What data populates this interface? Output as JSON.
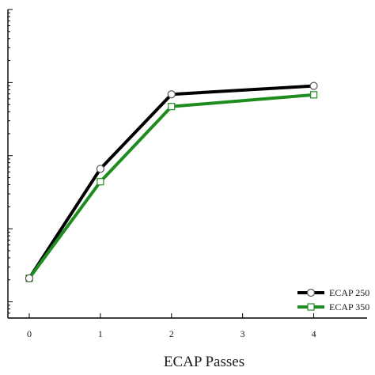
{
  "chart_data": {
    "type": "line",
    "xlabel": "ECAP Passes",
    "ylabel": "",
    "x": [
      0,
      1,
      2,
      3,
      4
    ],
    "x_ticks": [
      "0",
      "1",
      "2",
      "3",
      "4"
    ],
    "xlim": [
      -0.3,
      4.75
    ],
    "y_scale": "log",
    "y_tick_labels_visible": false,
    "series": [
      {
        "name": "ECAP 250",
        "x": [
          0,
          1,
          2,
          4
        ],
        "values": [
          2.1,
          66,
          690,
          900
        ],
        "color": "#000000",
        "marker": "circle"
      },
      {
        "name": "ECAP 350",
        "x": [
          0,
          1,
          2,
          4
        ],
        "values": [
          2.1,
          44,
          470,
          680
        ],
        "color": "#1f8c1f",
        "marker": "square"
      }
    ],
    "legend": "bottom-right"
  }
}
